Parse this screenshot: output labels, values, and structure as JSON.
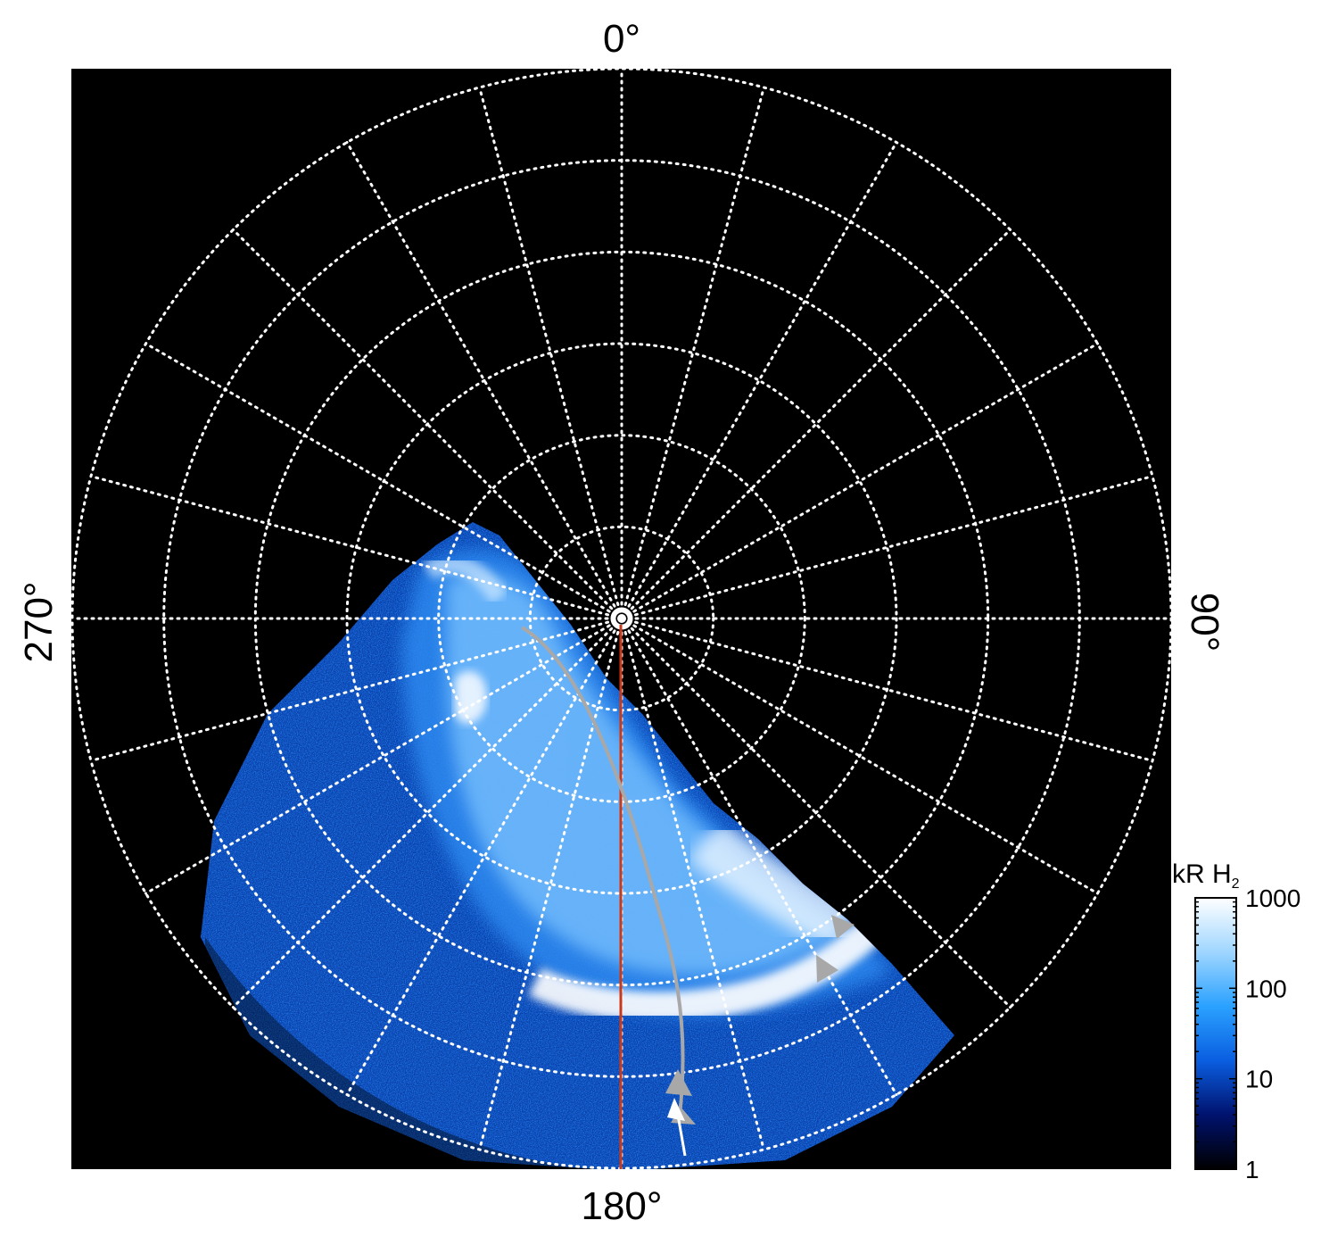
{
  "chart_data": {
    "type": "heatmap",
    "projection": "polar",
    "axis_labels": {
      "top": "0°",
      "right": "90°",
      "bottom": "180°",
      "left": "270°"
    },
    "grid": true,
    "grid_style": "dotted",
    "grid_color": "#ffffff",
    "background_color": "#000000",
    "rings": 6,
    "spokes": 24,
    "colorbar": {
      "title": "kR H",
      "title_subscript": "2",
      "scale": "log",
      "range": [
        1,
        1000
      ],
      "ticks": [
        "1000",
        "100",
        "10",
        "1"
      ],
      "colors": [
        "#000000",
        "#00126e",
        "#0a5ee0",
        "#2aa1ff",
        "#9fd6ff",
        "#ffffff"
      ],
      "placement": "right"
    },
    "overlays": {
      "meridian_color": "#c8391c",
      "track_color": "#a8a8a8",
      "arrow_color": "#a8a8a8",
      "white_arrow_color": "#ffffff"
    }
  }
}
